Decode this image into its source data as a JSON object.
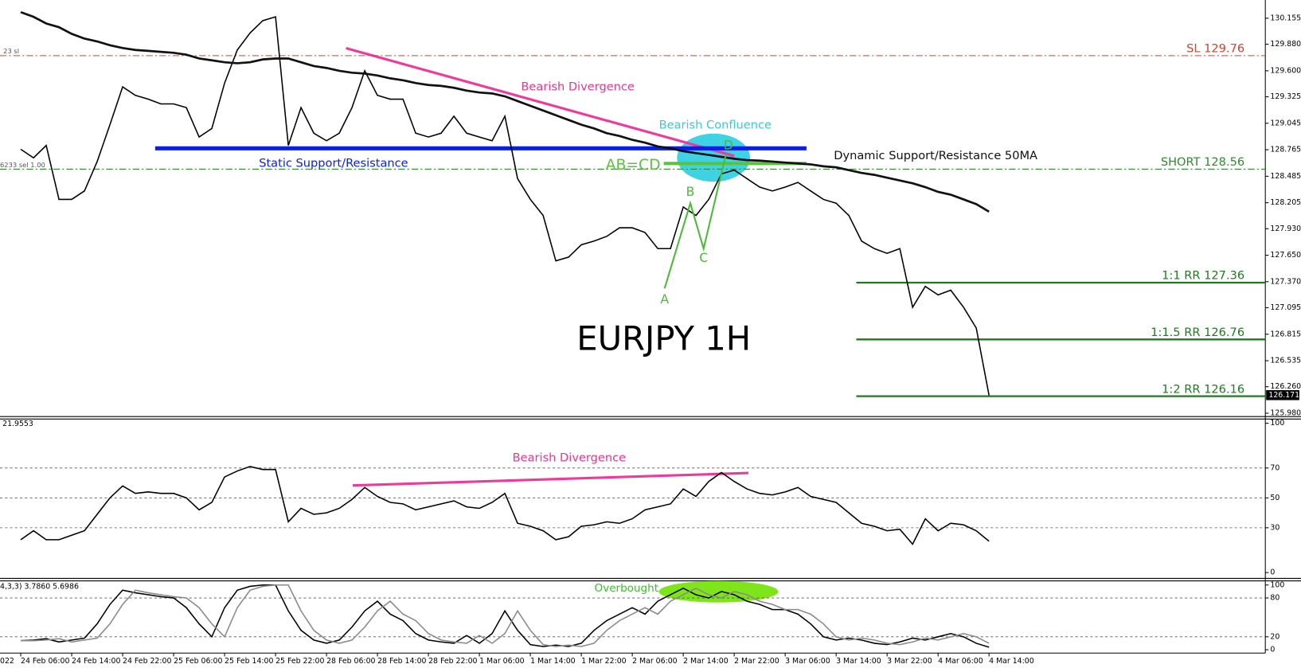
{
  "chart_data": [
    {
      "type": "line",
      "title": "EURJPY 1H",
      "categories": [
        "24 Feb 06:00",
        null,
        null,
        null,
        "24 Feb 14:00",
        null,
        null,
        null,
        "24 Feb 22:00",
        null,
        null,
        null,
        "25 Feb 06:00",
        null,
        null,
        null,
        "25 Feb 14:00",
        null,
        null,
        null,
        "25 Feb 22:00",
        null,
        null,
        null,
        "28 Feb 06:00",
        null,
        null,
        null,
        "28 Feb 14:00",
        null,
        null,
        null,
        "28 Feb 22:00",
        null,
        null,
        null,
        "1 Mar 06:00",
        null,
        null,
        null,
        "1 Mar 14:00",
        null,
        null,
        null,
        "1 Mar 22:00",
        null,
        null,
        null,
        "2 Mar 06:00",
        null,
        null,
        null,
        "2 Mar 14:00",
        null,
        null,
        null,
        "2 Mar 22:00",
        null,
        null,
        null,
        "3 Mar 06:00",
        null,
        null,
        null,
        "3 Mar 14:00",
        null,
        null,
        null,
        "3 Mar 22:00",
        null,
        null,
        null,
        "4 Mar 06:00",
        null,
        null,
        null,
        "4 Mar 14:00"
      ],
      "x_axis_cut_label": "022",
      "series": [
        {
          "color": "#000000",
          "values": [
            128.77,
            128.68,
            128.81,
            128.24,
            128.24,
            128.33,
            128.64,
            129.03,
            129.43,
            129.34,
            129.3,
            129.25,
            129.25,
            129.21,
            128.9,
            128.99,
            129.47,
            129.82,
            130.0,
            130.13,
            130.17,
            128.81,
            129.21,
            128.94,
            128.86,
            128.94,
            129.21,
            129.6,
            129.34,
            129.3,
            129.3,
            128.94,
            128.9,
            128.94,
            129.12,
            128.94,
            128.9,
            128.86,
            129.12,
            128.46,
            128.24,
            128.07,
            127.59,
            127.63,
            127.76,
            127.8,
            127.85,
            127.94,
            127.94,
            127.89,
            127.72,
            127.72,
            128.16,
            128.07,
            128.24,
            128.51,
            128.55,
            128.46,
            128.37,
            128.33,
            128.37,
            128.42,
            128.33,
            128.24,
            128.2,
            128.07,
            127.8,
            127.72,
            127.67,
            127.72,
            127.1,
            127.32,
            127.23,
            127.28,
            127.1,
            126.88,
            126.17
          ]
        },
        {
          "color": "#111111",
          "values": [
            130.22,
            130.17,
            130.1,
            130.06,
            129.99,
            129.94,
            129.91,
            129.87,
            129.84,
            129.82,
            129.81,
            129.8,
            129.79,
            129.77,
            129.73,
            129.71,
            129.69,
            129.68,
            129.69,
            129.72,
            129.73,
            129.73,
            129.69,
            129.65,
            129.63,
            129.6,
            129.58,
            129.57,
            129.55,
            129.52,
            129.5,
            129.47,
            129.45,
            129.44,
            129.42,
            129.39,
            129.37,
            129.36,
            129.33,
            129.28,
            129.23,
            129.18,
            129.13,
            129.08,
            129.03,
            128.99,
            128.94,
            128.91,
            128.87,
            128.84,
            128.8,
            128.78,
            128.75,
            128.73,
            128.71,
            128.69,
            128.67,
            128.655,
            128.65,
            128.64,
            128.63,
            128.62,
            128.61,
            128.59,
            128.58,
            128.55,
            128.52,
            128.5,
            128.47,
            128.44,
            128.41,
            128.37,
            128.32,
            128.29,
            128.24,
            128.19,
            128.11
          ]
        }
      ],
      "ylim": [
        125.962,
        130.348
      ],
      "yticks": [
        130.155,
        {
          "value": 129.88,
          "label": "129.880"
        },
        {
          "value": 129.6,
          "label": "129.600"
        },
        129.325,
        129.045,
        128.765,
        128.485,
        128.205,
        {
          "value": 127.93,
          "label": "127.930"
        },
        {
          "value": 127.65,
          "label": "127.650"
        },
        {
          "value": 127.37,
          "label": "127.370"
        },
        127.095,
        126.815,
        126.535,
        {
          "value": 126.26,
          "label": "126.260"
        },
        {
          "value": 125.98,
          "label": "125.980"
        }
      ],
      "last_price": 126.171,
      "levels": [
        {
          "label": "SL 129.76",
          "value": 129.76,
          "color": "#d8402a",
          "style": "dashdot"
        },
        {
          "label": "SHORT 128.56",
          "value": 128.56,
          "color": "#2e8b2e",
          "style": "dashdot"
        },
        {
          "label": "1:1 RR 127.36",
          "value": 127.36,
          "color": "#1f7a1f",
          "style": "solid"
        },
        {
          "label": "1:1.5 RR 126.76",
          "value": 126.76,
          "color": "#1f7a1f",
          "style": "solid"
        },
        {
          "label": "1:2 RR 126.16",
          "value": 126.16,
          "color": "#1f7a1f",
          "style": "solid"
        }
      ],
      "lines": [
        {
          "label": "Static Support/Resistance",
          "value": 128.78,
          "color": "#0a1ee6"
        },
        {
          "label": "AB=CD",
          "value": 128.62,
          "color": "#5cc23e"
        }
      ],
      "pattern": {
        "labels": [
          "A",
          "B",
          "C",
          "D"
        ],
        "values": [
          127.3,
          128.2,
          127.72,
          128.72
        ],
        "color": "#4cbb38"
      },
      "annotations": [
        "Bearish Divergence",
        "Bearish Confluence",
        "Dynamic Support/Resistance 50MA",
        "23 sl",
        "6233 sel 1.00"
      ]
    },
    {
      "type": "line",
      "indicator_label": "21.9553",
      "series": [
        {
          "color": "#000000",
          "values": [
            22,
            28,
            22,
            22,
            25,
            28,
            39,
            50,
            58,
            53,
            54,
            53,
            53,
            50,
            42,
            47,
            64,
            68,
            71,
            69,
            69,
            34,
            43,
            39,
            40,
            43,
            49,
            57,
            51,
            47,
            46,
            42,
            44,
            46,
            48,
            44,
            43,
            47,
            53,
            33,
            31,
            28,
            22,
            24,
            31,
            32,
            34,
            33,
            36,
            42,
            44,
            46,
            56,
            51,
            61,
            67,
            61,
            56,
            53,
            52,
            54,
            57,
            51,
            49,
            47,
            40,
            33,
            31,
            28,
            29,
            19,
            36,
            28,
            33,
            32,
            28,
            21
          ]
        }
      ],
      "ylim": [
        0,
        100
      ],
      "yticks": [
        0,
        30,
        50,
        70,
        100
      ],
      "grid": true,
      "annotations": [
        "Bearish Divergence"
      ]
    },
    {
      "type": "line",
      "indicator_label": "4,3,3) 3.7860 5.6986",
      "series": [
        {
          "color": "#000000",
          "values": [
            14,
            15,
            17,
            12,
            15,
            18,
            40,
            70,
            92,
            88,
            85,
            82,
            80,
            65,
            40,
            20,
            65,
            92,
            98,
            100,
            100,
            60,
            30,
            15,
            10,
            15,
            35,
            60,
            75,
            55,
            45,
            25,
            15,
            12,
            10,
            22,
            10,
            25,
            60,
            30,
            8,
            5,
            7,
            5,
            10,
            30,
            45,
            55,
            65,
            55,
            75,
            85,
            95,
            85,
            80,
            90,
            85,
            75,
            70,
            62,
            62,
            55,
            40,
            20,
            15,
            18,
            15,
            10,
            8,
            12,
            18,
            15,
            20,
            25,
            20,
            10,
            4
          ]
        },
        {
          "color": "#8a8a8a",
          "values": [
            14,
            14,
            15,
            17,
            12,
            15,
            18,
            40,
            70,
            92,
            88,
            85,
            82,
            80,
            65,
            40,
            20,
            65,
            92,
            98,
            100,
            100,
            60,
            30,
            15,
            10,
            15,
            35,
            60,
            75,
            55,
            45,
            25,
            15,
            12,
            10,
            22,
            10,
            25,
            60,
            30,
            8,
            5,
            7,
            5,
            10,
            30,
            45,
            55,
            65,
            55,
            75,
            85,
            95,
            85,
            80,
            90,
            85,
            75,
            70,
            62,
            62,
            55,
            40,
            20,
            15,
            18,
            15,
            10,
            8,
            12,
            18,
            15,
            20,
            25,
            20,
            10
          ]
        }
      ],
      "ylim": [
        0,
        100
      ],
      "yticks": [
        0,
        20,
        80,
        100
      ],
      "grid": true,
      "annotations": [
        "Overbought"
      ]
    }
  ]
}
